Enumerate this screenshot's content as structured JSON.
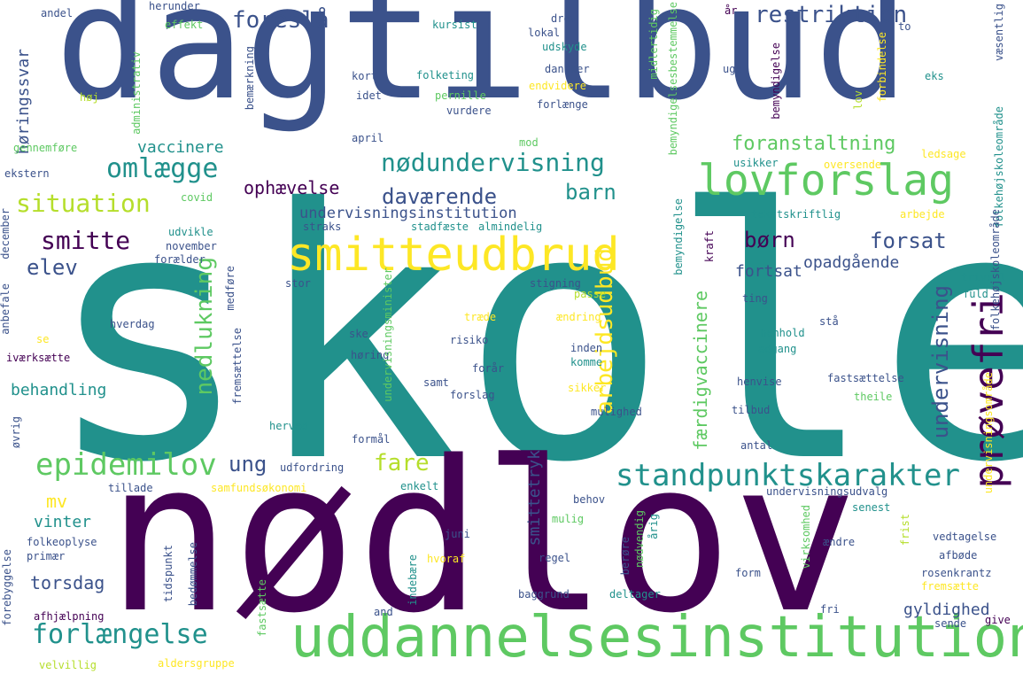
{
  "palette": {
    "dark_purple": "#440154",
    "indigo": "#3b528b",
    "teal": "#21918c",
    "green": "#5ec962",
    "yellow": "#fde725"
  },
  "words": [
    {
      "text": "skole",
      "color": "#21918c"
    },
    {
      "text": "nødlov",
      "color": "#440154"
    },
    {
      "text": "dagtilbud",
      "color": "#3b528b"
    },
    {
      "text": "uddannelsesinstitution",
      "color": "#5ec962"
    },
    {
      "text": "smitteudbrud",
      "color": "#fde725"
    },
    {
      "text": "lovforslag",
      "color": "#5ec962"
    },
    {
      "text": "prøvefri",
      "color": "#440154"
    },
    {
      "text": "standpunktskarakter",
      "color": "#21918c"
    },
    {
      "text": "nødundervisning",
      "color": "#21918c"
    },
    {
      "text": "epidemilov",
      "color": "#5ec962"
    },
    {
      "text": "forlængelse",
      "color": "#21918c"
    },
    {
      "text": "omlægge",
      "color": "#21918c"
    },
    {
      "text": "situation",
      "color": "#b5de2b"
    },
    {
      "text": "smitte",
      "color": "#440154"
    },
    {
      "text": "elev",
      "color": "#3b528b"
    },
    {
      "text": "foreslå",
      "color": "#3b528b"
    },
    {
      "text": "restriktion",
      "color": "#3b528b"
    },
    {
      "text": "daværende",
      "color": "#3b528b"
    },
    {
      "text": "barn",
      "color": "#21918c"
    },
    {
      "text": "børn",
      "color": "#440154"
    },
    {
      "text": "forsat",
      "color": "#3b528b"
    },
    {
      "text": "nedlukning",
      "color": "#5ec962"
    },
    {
      "text": "arbejdsudbud",
      "color": "#fde725"
    },
    {
      "text": "fare",
      "color": "#b5de2b"
    },
    {
      "text": "ung",
      "color": "#3b528b"
    },
    {
      "text": "undervisning",
      "color": "#3b528b"
    },
    {
      "text": "færdigvaccinere",
      "color": "#5ec962"
    },
    {
      "text": "foranstaltning",
      "color": "#5ec962"
    },
    {
      "text": "ophævelse",
      "color": "#440154"
    },
    {
      "text": "vaccinere",
      "color": "#21918c"
    },
    {
      "text": "høringssvar",
      "color": "#3b528b"
    },
    {
      "text": "behandling",
      "color": "#21918c"
    },
    {
      "text": "mv",
      "color": "#fde725"
    },
    {
      "text": "vinter",
      "color": "#21918c"
    },
    {
      "text": "torsdag",
      "color": "#3b528b"
    },
    {
      "text": "smittetryk",
      "color": "#3b528b"
    },
    {
      "text": "gyldighed",
      "color": "#3b528b"
    },
    {
      "text": "fortsat",
      "color": "#3b528b"
    },
    {
      "text": "opadgående",
      "color": "#3b528b"
    },
    {
      "text": "undervisningsinstitution",
      "color": "#3b528b"
    },
    {
      "text": "andel",
      "color": "#3b528b"
    },
    {
      "text": "herunder",
      "color": "#3b528b"
    },
    {
      "text": "effekt",
      "color": "#5ec962"
    },
    {
      "text": "kursist",
      "color": "#21918c"
    },
    {
      "text": "drev",
      "color": "#3b528b"
    },
    {
      "text": "lokal",
      "color": "#3b528b"
    },
    {
      "text": "udskyde",
      "color": "#21918c"
    },
    {
      "text": "administrativ",
      "color": "#5ec962"
    },
    {
      "text": "bemærkning",
      "color": "#3b528b"
    },
    {
      "text": "høj",
      "color": "#b5de2b"
    },
    {
      "text": "kort",
      "color": "#3b528b"
    },
    {
      "text": "folketing",
      "color": "#21918c"
    },
    {
      "text": "dansker",
      "color": "#3b528b"
    },
    {
      "text": "idet",
      "color": "#3b528b"
    },
    {
      "text": "pernille",
      "color": "#5ec962"
    },
    {
      "text": "vurdere",
      "color": "#3b528b"
    },
    {
      "text": "endvidere",
      "color": "#fde725"
    },
    {
      "text": "forlænge",
      "color": "#3b528b"
    },
    {
      "text": "midlertidig",
      "color": "#5ec962"
    },
    {
      "text": "bemyndigelsesbestemmelse",
      "color": "#5ec962"
    },
    {
      "text": "uge",
      "color": "#3b528b"
    },
    {
      "text": "bemyndigelse",
      "color": "#440154"
    },
    {
      "text": "forbindelse",
      "color": "#fde725"
    },
    {
      "text": "lov",
      "color": "#b5de2b"
    },
    {
      "text": "to",
      "color": "#3b528b"
    },
    {
      "text": "eks",
      "color": "#21918c"
    },
    {
      "text": "væsentlig",
      "color": "#3b528b"
    },
    {
      "text": "folkehøjskoleområde",
      "color": "#21918c"
    },
    {
      "text": "år",
      "color": "#440154"
    },
    {
      "text": "gennemføre",
      "color": "#5ec962"
    },
    {
      "text": "ekstern",
      "color": "#3b528b"
    },
    {
      "text": "april",
      "color": "#3b528b"
    },
    {
      "text": "mod",
      "color": "#5ec962"
    },
    {
      "text": "usikker",
      "color": "#21918c"
    },
    {
      "text": "oversende",
      "color": "#fde725"
    },
    {
      "text": "ledsage",
      "color": "#fde725"
    },
    {
      "text": "covid",
      "color": "#5ec962"
    },
    {
      "text": "december",
      "color": "#3b528b"
    },
    {
      "text": "udvikle",
      "color": "#21918c"
    },
    {
      "text": "november",
      "color": "#3b528b"
    },
    {
      "text": "forælder",
      "color": "#3b528b"
    },
    {
      "text": "straks",
      "color": "#3b528b"
    },
    {
      "text": "stadfæste",
      "color": "#21918c"
    },
    {
      "text": "almindelig",
      "color": "#21918c"
    },
    {
      "text": "tekstskriftlig",
      "color": "#21918c"
    },
    {
      "text": "arbejde",
      "color": "#fde725"
    },
    {
      "text": "kraft",
      "color": "#440154"
    },
    {
      "text": "trivsel",
      "color": "#21918c"
    },
    {
      "text": "fuld",
      "color": "#21918c"
    },
    {
      "text": "anbefale",
      "color": "#3b528b"
    },
    {
      "text": "stor",
      "color": "#3b528b"
    },
    {
      "text": "stigning",
      "color": "#3b528b"
    },
    {
      "text": "passe",
      "color": "#b5de2b"
    },
    {
      "text": "ting",
      "color": "#3b528b"
    },
    {
      "text": "hverdag",
      "color": "#3b528b"
    },
    {
      "text": "træde",
      "color": "#fde725"
    },
    {
      "text": "ændring",
      "color": "#fde725"
    },
    {
      "text": "stå",
      "color": "#3b528b"
    },
    {
      "text": "se",
      "color": "#fde725"
    },
    {
      "text": "ske",
      "color": "#3b528b"
    },
    {
      "text": "risiko",
      "color": "#3b528b"
    },
    {
      "text": "henhold",
      "color": "#21918c"
    },
    {
      "text": "adgang",
      "color": "#21918c"
    },
    {
      "text": "inden",
      "color": "#3b528b"
    },
    {
      "text": "komme",
      "color": "#21918c"
    },
    {
      "text": "iværksætte",
      "color": "#440154"
    },
    {
      "text": "høring",
      "color": "#3b528b"
    },
    {
      "text": "forår",
      "color": "#3b528b"
    },
    {
      "text": "samt",
      "color": "#3b528b"
    },
    {
      "text": "forslag",
      "color": "#3b528b"
    },
    {
      "text": "sikker",
      "color": "#fde725"
    },
    {
      "text": "henvise",
      "color": "#3b528b"
    },
    {
      "text": "fastsættelse",
      "color": "#3b528b"
    },
    {
      "text": "theile",
      "color": "#5ec962"
    },
    {
      "text": "mulighed",
      "color": "#3b528b"
    },
    {
      "text": "tilbud",
      "color": "#3b528b"
    },
    {
      "text": "øvrig",
      "color": "#3b528b"
    },
    {
      "text": "fremsættelse",
      "color": "#3b528b"
    },
    {
      "text": "medføre",
      "color": "#3b528b"
    },
    {
      "text": "herved",
      "color": "#21918c"
    },
    {
      "text": "formål",
      "color": "#3b528b"
    },
    {
      "text": "antal",
      "color": "#3b528b"
    },
    {
      "text": "udfordring",
      "color": "#3b528b"
    },
    {
      "text": "tillade",
      "color": "#3b528b"
    },
    {
      "text": "samfundsøkonomi",
      "color": "#fde725"
    },
    {
      "text": "enkelt",
      "color": "#21918c"
    },
    {
      "text": "behov",
      "color": "#3b528b"
    },
    {
      "text": "undervisningsudvalg",
      "color": "#3b528b"
    },
    {
      "text": "senest",
      "color": "#21918c"
    },
    {
      "text": "mulig",
      "color": "#5ec962"
    },
    {
      "text": "juni",
      "color": "#3b528b"
    },
    {
      "text": "folkeoplyse",
      "color": "#3b528b"
    },
    {
      "text": "primær",
      "color": "#3b528b"
    },
    {
      "text": "regel",
      "color": "#3b528b"
    },
    {
      "text": "hvoraf",
      "color": "#fde725"
    },
    {
      "text": "ændre",
      "color": "#3b528b"
    },
    {
      "text": "vedtagelse",
      "color": "#3b528b"
    },
    {
      "text": "afbøde",
      "color": "#3b528b"
    },
    {
      "text": "form",
      "color": "#3b528b"
    },
    {
      "text": "rosenkrantz",
      "color": "#3b528b"
    },
    {
      "text": "fremsætte",
      "color": "#fde725"
    },
    {
      "text": "forebyggelse",
      "color": "#3b528b"
    },
    {
      "text": "afhjælpning",
      "color": "#440154"
    },
    {
      "text": "baggrund",
      "color": "#3b528b"
    },
    {
      "text": "deltager",
      "color": "#21918c"
    },
    {
      "text": "fri",
      "color": "#3b528b"
    },
    {
      "text": "sende",
      "color": "#3b528b"
    },
    {
      "text": "give",
      "color": "#440154"
    },
    {
      "text": "and",
      "color": "#3b528b"
    },
    {
      "text": "velvillig",
      "color": "#b5de2b"
    },
    {
      "text": "aldersgruppe",
      "color": "#fde725"
    },
    {
      "text": "tidspunkt",
      "color": "#3b528b"
    },
    {
      "text": "bedømmelse",
      "color": "#3b528b"
    },
    {
      "text": "fastsætte",
      "color": "#5ec962"
    },
    {
      "text": "indebære",
      "color": "#21918c"
    },
    {
      "text": "berøre",
      "color": "#3b528b"
    },
    {
      "text": "nødvendig",
      "color": "#5ec962"
    },
    {
      "text": "årig",
      "color": "#21918c"
    },
    {
      "text": "virksomhed",
      "color": "#5ec962"
    },
    {
      "text": "frist",
      "color": "#b5de2b"
    },
    {
      "text": "undervisningsminister",
      "color": "#5ec962"
    },
    {
      "text": "undervisningsområde",
      "color": "#fde725"
    },
    {
      "text": "bemyndigelse",
      "color": "#21918c"
    },
    {
      "text": "folkehøjskoleområde",
      "color": "#3b528b"
    }
  ]
}
